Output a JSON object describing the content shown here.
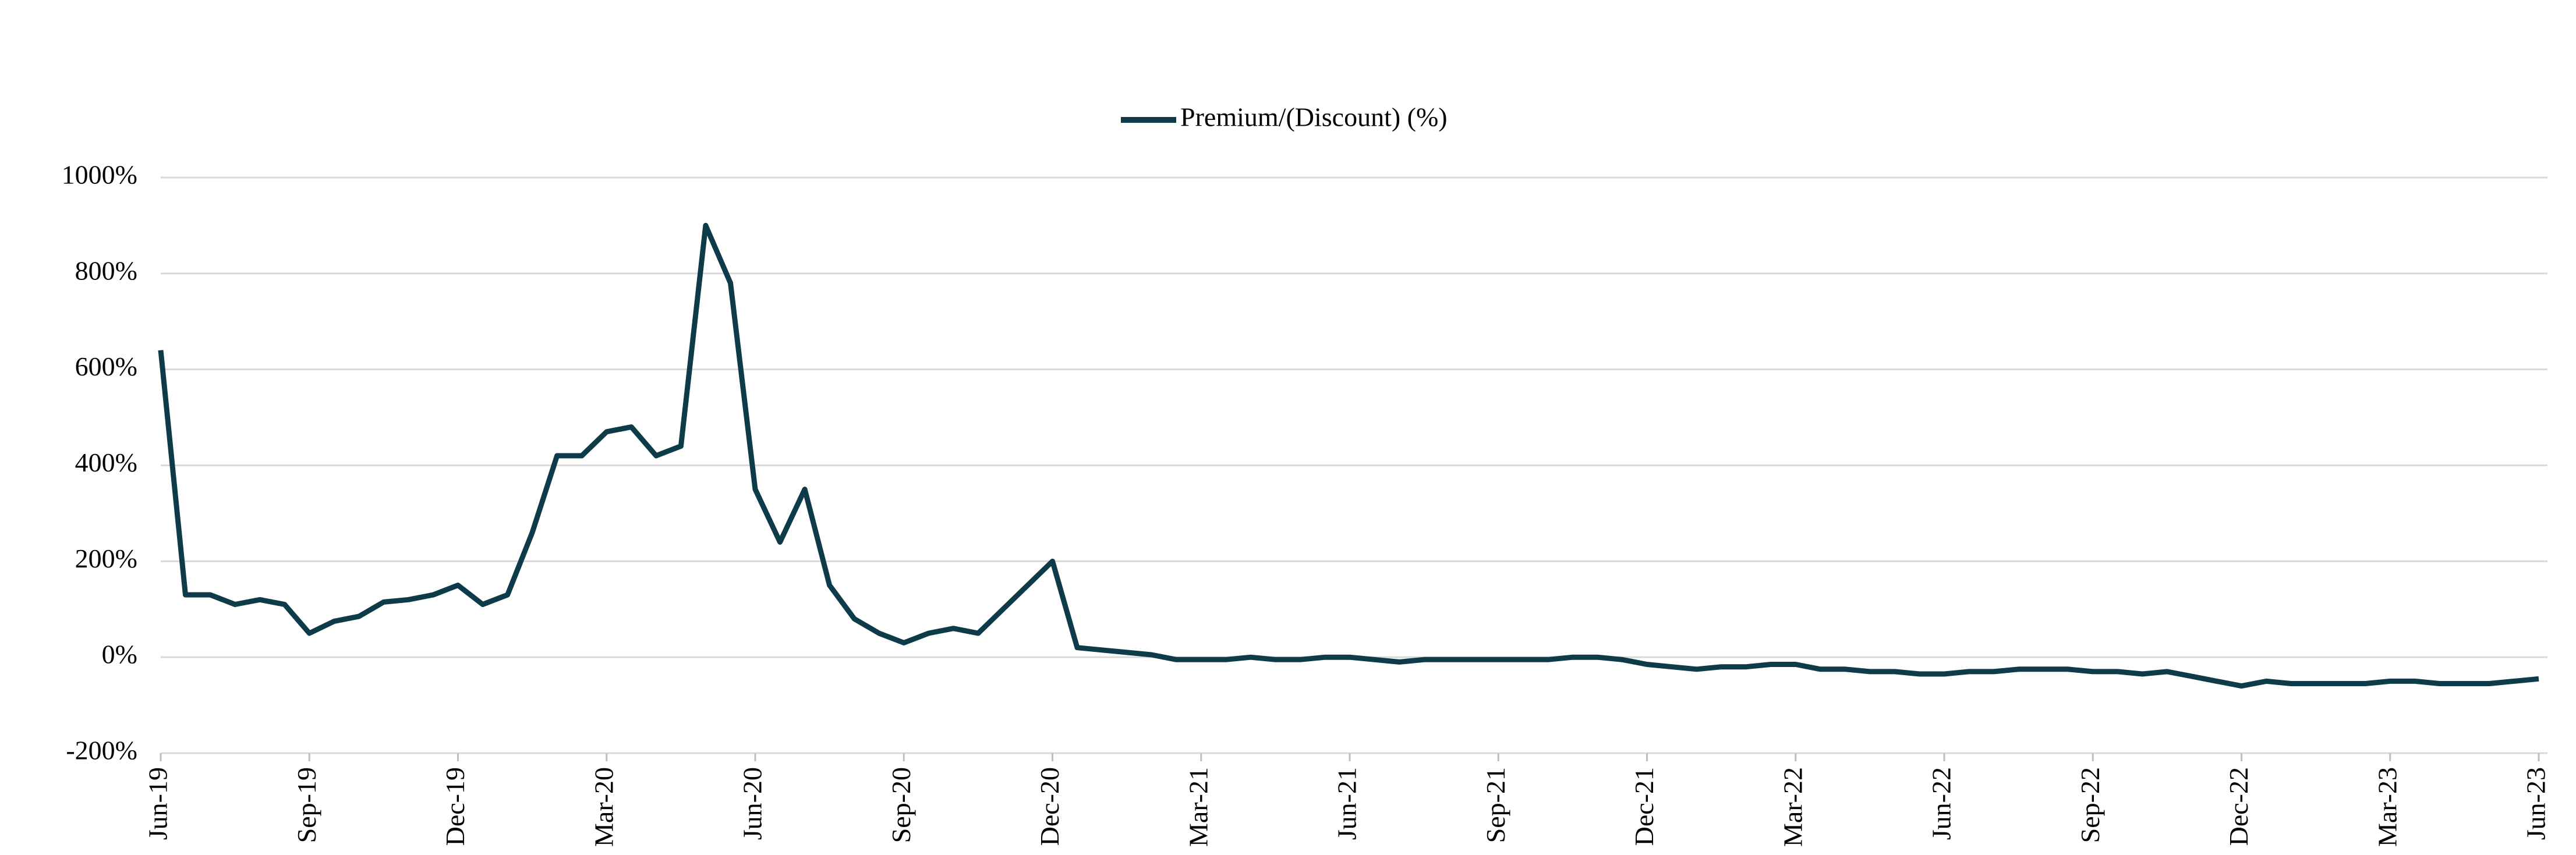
{
  "chart_data": {
    "type": "line",
    "categories": [
      "Jun-19",
      null,
      null,
      null,
      null,
      null,
      "Sep-19",
      null,
      null,
      null,
      null,
      null,
      "Dec-19",
      null,
      null,
      null,
      null,
      null,
      "Mar-20",
      null,
      null,
      null,
      null,
      null,
      "Jun-20",
      null,
      null,
      null,
      null,
      null,
      "Sep-20",
      null,
      null,
      null,
      null,
      null,
      "Dec-20",
      null,
      null,
      null,
      null,
      null,
      "Mar-21",
      null,
      null,
      null,
      null,
      null,
      "Jun-21",
      null,
      null,
      null,
      null,
      null,
      "Sep-21",
      null,
      null,
      null,
      null,
      null,
      "Dec-21",
      null,
      null,
      null,
      null,
      null,
      "Mar-22",
      null,
      null,
      null,
      null,
      null,
      "Jun-22",
      null,
      null,
      null,
      null,
      null,
      "Sep-22",
      null,
      null,
      null,
      null,
      null,
      "Dec-22",
      null,
      null,
      null,
      null,
      null,
      "Mar-23",
      null,
      null,
      null,
      null,
      null,
      "Jun-23"
    ],
    "series": [
      {
        "name": "Premium/(Discount) (%)",
        "color": "#0d3b4a",
        "values": [
          640,
          130,
          130,
          110,
          120,
          110,
          50,
          75,
          85,
          115,
          120,
          130,
          150,
          110,
          130,
          260,
          420,
          420,
          470,
          480,
          420,
          440,
          900,
          780,
          350,
          240,
          350,
          150,
          80,
          50,
          30,
          50,
          60,
          50,
          100,
          150,
          200,
          20,
          15,
          10,
          5,
          -5,
          -5,
          -5,
          0,
          -5,
          -5,
          0,
          0,
          -5,
          -10,
          -5,
          -5,
          -5,
          -5,
          -5,
          -5,
          0,
          0,
          -5,
          -15,
          -20,
          -25,
          -20,
          -20,
          -15,
          -15,
          -25,
          -25,
          -30,
          -30,
          -35,
          -35,
          -30,
          -30,
          -25,
          -25,
          -25,
          -30,
          -30,
          -35,
          -30,
          -40,
          -50,
          -60,
          -50,
          -55,
          -55,
          -55,
          -55,
          -50,
          -50,
          -55,
          -55,
          -55,
          -50,
          -45
        ]
      }
    ],
    "ylim": [
      -200,
      1000
    ],
    "yticks": [
      {
        "value": -200,
        "label": "-200%"
      },
      {
        "value": 0,
        "label": "0%"
      },
      {
        "value": 200,
        "label": "200%"
      },
      {
        "value": 400,
        "label": "400%"
      },
      {
        "value": 600,
        "label": "600%"
      },
      {
        "value": 800,
        "label": "800%"
      },
      {
        "value": 1000,
        "label": "1000%"
      }
    ],
    "grid": true,
    "legend": "top"
  }
}
